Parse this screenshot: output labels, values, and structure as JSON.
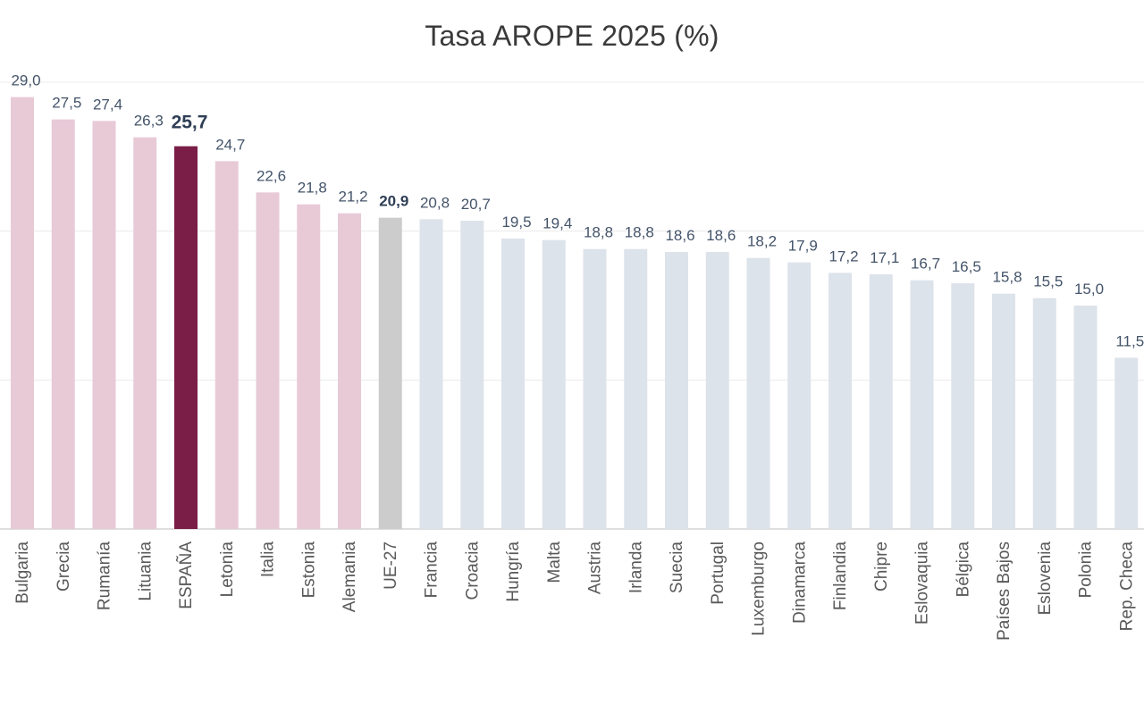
{
  "chart_data": {
    "type": "bar",
    "title": "Tasa AROPE 2025 (%)",
    "xlabel": "",
    "ylabel": "",
    "ylim": [
      0,
      30
    ],
    "grid": true,
    "categories": [
      "Bulgaria",
      "Grecia",
      "Rumanía",
      "Lituania",
      "ESPAÑA",
      "Letonia",
      "Italia",
      "Estonia",
      "Alemania",
      "UE-27",
      "Francia",
      "Croacia",
      "Hungría",
      "Malta",
      "Austria",
      "Irlanda",
      "Suecia",
      "Portugal",
      "Luxemburgo",
      "Dinamarca",
      "Finlandia",
      "Chipre",
      "Eslovaquia",
      "Bélgica",
      "Países Bajos",
      "Eslovenia",
      "Polonia",
      "Rep. Checa"
    ],
    "values": [
      29.0,
      27.5,
      27.4,
      26.3,
      25.7,
      24.7,
      22.6,
      21.8,
      21.2,
      20.9,
      20.8,
      20.7,
      19.5,
      19.4,
      18.8,
      18.8,
      18.6,
      18.6,
      18.2,
      17.9,
      17.2,
      17.1,
      16.7,
      16.5,
      15.8,
      15.5,
      15.0,
      11.5
    ],
    "value_labels": [
      "29,0",
      "27,5",
      "27,4",
      "26,3",
      "25,7",
      "24,7",
      "22,6",
      "21,8",
      "21,2",
      "20,9",
      "20,8",
      "20,7",
      "19,5",
      "19,4",
      "18,8",
      "18,8",
      "18,6",
      "18,6",
      "18,2",
      "17,9",
      "17,2",
      "17,1",
      "16,7",
      "16,5",
      "15,8",
      "15,5",
      "15,0",
      "11,5"
    ],
    "bar_colors": [
      "#e8cad7",
      "#e8cad7",
      "#e8cad7",
      "#e8cad7",
      "#7a1d47",
      "#e8cad7",
      "#e8cad7",
      "#e8cad7",
      "#e8cad7",
      "#cccccc",
      "#dde3ea",
      "#dde3ea",
      "#dde3ea",
      "#dde3ea",
      "#dde3ea",
      "#dde3ea",
      "#dde3ea",
      "#dde3ea",
      "#dde3ea",
      "#dde3ea",
      "#dde3ea",
      "#dde3ea",
      "#dde3ea",
      "#dde3ea",
      "#dde3ea",
      "#dde3ea",
      "#dde3ea",
      "#dde3ea"
    ],
    "highlight_category": "ESPAÑA",
    "reference_category": "UE-27"
  }
}
